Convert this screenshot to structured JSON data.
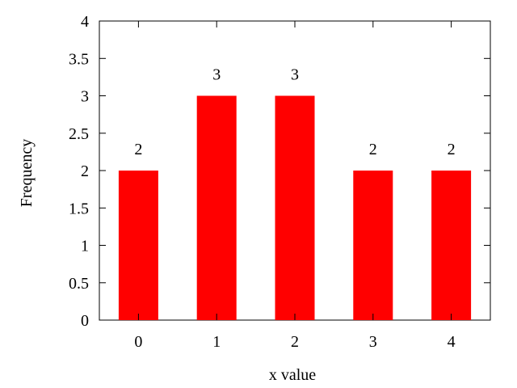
{
  "chart_data": {
    "type": "bar",
    "categories": [
      "0",
      "1",
      "2",
      "3",
      "4"
    ],
    "values": [
      2,
      3,
      3,
      2,
      2
    ],
    "data_labels": [
      "2",
      "3",
      "3",
      "2",
      "2"
    ],
    "title": "",
    "xlabel": "x value",
    "ylabel": "Frequency",
    "ylim": [
      0,
      4
    ],
    "yticks": [
      0,
      0.5,
      1,
      1.5,
      2,
      2.5,
      3,
      3.5,
      4
    ],
    "ytick_labels": [
      "0",
      "0.5",
      "1",
      "1.5",
      "2",
      "2.5",
      "3",
      "3.5",
      "4"
    ],
    "grid": false,
    "legend": "none",
    "bar_color": "#ff0000"
  }
}
